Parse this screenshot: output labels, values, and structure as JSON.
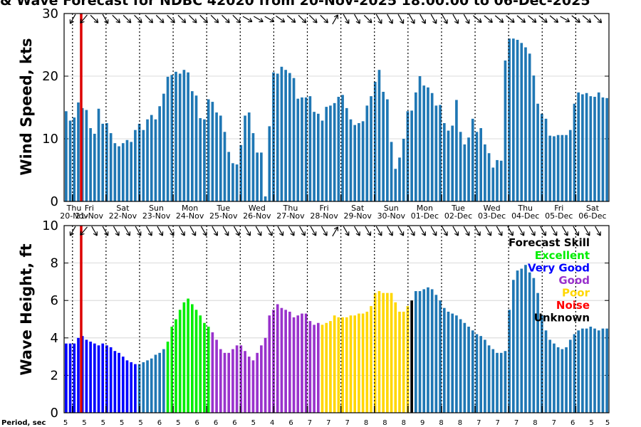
{
  "chart_data": {
    "title": "& Wave Forecast for NDBC 42020 from 20-Nov-2025 18:00:00 to 06-Dec-2025",
    "panels": [
      {
        "name": "wind",
        "type": "bar",
        "ylabel": "Wind Speed, kts",
        "ylim": [
          0,
          30
        ],
        "yticks": [
          "0",
          "10",
          "20",
          "30"
        ],
        "bar_color": "#1f77b4",
        "values": [
          14.4,
          12.9,
          13.4,
          15.8,
          14.9,
          14.6,
          11.7,
          10.8,
          14.8,
          12.4,
          12.5,
          10.9,
          9.3,
          8.8,
          9.3,
          9.8,
          9.5,
          11.4,
          12.4,
          11.4,
          13.1,
          13.8,
          13.1,
          15.2,
          17.2,
          19.9,
          20.2,
          20.7,
          20.4,
          21.0,
          20.6,
          17.6,
          16.9,
          13.3,
          13.1,
          16.3,
          15.9,
          14.2,
          13.7,
          11.1,
          7.9,
          6.1,
          5.9,
          9.0,
          13.7,
          14.2,
          10.9,
          7.8,
          7.8,
          0.8,
          12.0,
          20.6,
          20.4,
          21.5,
          21.0,
          20.5,
          19.7,
          16.4,
          16.6,
          16.6,
          16.8,
          14.3,
          14.0,
          12.9,
          15.1,
          15.3,
          15.7,
          16.7,
          17.0,
          14.9,
          13.1,
          12.2,
          12.5,
          12.8,
          15.3,
          16.8,
          19.1,
          21.0,
          17.5,
          16.3,
          9.5,
          5.2,
          7.0,
          10.0,
          14.4,
          14.5,
          17.4,
          20.0,
          18.5,
          18.2,
          17.3,
          15.3,
          15.4,
          12.5,
          11.3,
          12.1,
          16.2,
          11.1,
          9.1,
          10.2,
          13.2,
          11.1,
          11.7,
          9.1,
          7.7,
          5.4,
          6.6,
          6.5,
          22.5,
          26.0,
          26.0,
          25.8,
          25.3,
          24.6,
          23.6,
          20.1,
          15.6,
          14.0,
          13.2,
          10.5,
          10.4,
          10.6,
          10.6,
          10.6,
          11.4,
          15.6,
          17.4,
          17.1,
          17.3,
          16.8,
          16.7,
          17.4,
          16.6,
          16.5
        ]
      },
      {
        "name": "wave",
        "type": "bar",
        "ylabel": "Wave Height, ft",
        "ylim": [
          0,
          10
        ],
        "yticks": [
          "0",
          "2",
          "4",
          "6",
          "8",
          "10"
        ],
        "values": [
          3.7,
          3.7,
          3.7,
          4.0,
          4.1,
          3.9,
          3.8,
          3.7,
          3.6,
          3.7,
          3.6,
          3.5,
          3.3,
          3.2,
          3.0,
          2.8,
          2.7,
          2.6,
          2.6,
          2.7,
          2.8,
          2.9,
          3.1,
          3.2,
          3.4,
          3.8,
          4.6,
          5.0,
          5.5,
          5.9,
          6.1,
          5.8,
          5.5,
          5.2,
          4.8,
          4.6,
          4.3,
          3.9,
          3.4,
          3.2,
          3.2,
          3.4,
          3.6,
          3.6,
          3.3,
          3.0,
          2.8,
          3.2,
          3.6,
          4.0,
          5.2,
          5.5,
          5.8,
          5.6,
          5.5,
          5.4,
          5.1,
          5.2,
          5.3,
          5.3,
          4.9,
          4.7,
          4.8,
          4.7,
          4.8,
          4.9,
          5.2,
          5.1,
          5.1,
          5.1,
          5.2,
          5.2,
          5.3,
          5.3,
          5.4,
          5.7,
          6.4,
          6.5,
          6.4,
          6.4,
          6.4,
          5.9,
          5.4,
          5.4,
          5.7,
          6.0,
          6.5,
          6.5,
          6.6,
          6.7,
          6.6,
          6.3,
          6.0,
          5.6,
          5.4,
          5.3,
          5.2,
          5.0,
          4.8,
          4.6,
          4.4,
          4.2,
          4.1,
          3.9,
          3.6,
          3.4,
          3.2,
          3.2,
          3.3,
          5.5,
          7.1,
          7.6,
          7.7,
          7.9,
          7.5,
          7.2,
          6.4,
          5.2,
          4.4,
          3.9,
          3.7,
          3.5,
          3.4,
          3.5,
          3.9,
          4.2,
          4.4,
          4.5,
          4.5,
          4.6,
          4.5,
          4.4,
          4.5,
          4.5
        ],
        "skill_colors": {
          "Excellent": "#00ee00",
          "Very Good": "#0000ff",
          "Good": "#9932cc",
          "Poor": "#ffd700",
          "Noise": "#ff0000",
          "Unknown": "#000000",
          "Default": "#1f77b4"
        },
        "skill_segments": [
          {
            "from": 0,
            "to": 17,
            "skill": "Very Good"
          },
          {
            "from": 18,
            "to": 24,
            "skill": "Default"
          },
          {
            "from": 25,
            "to": 35,
            "skill": "Excellent"
          },
          {
            "from": 36,
            "to": 40,
            "skill": "Good"
          },
          {
            "from": 41,
            "to": 54,
            "skill": "Good"
          },
          {
            "from": 55,
            "to": 62,
            "skill": "Good"
          },
          {
            "from": 63,
            "to": 75,
            "skill": "Poor"
          },
          {
            "from": 76,
            "to": 84,
            "skill": "Poor"
          },
          {
            "from": 85,
            "to": 85,
            "skill": "Unknown"
          },
          {
            "from": 86,
            "to": 136,
            "skill": "Default"
          }
        ]
      }
    ],
    "day_labels": [
      {
        "weekday": "Thu",
        "date": "20-Nov"
      },
      {
        "weekday": "Fri",
        "date": "21-Nov"
      },
      {
        "weekday": "Sat",
        "date": "22-Nov"
      },
      {
        "weekday": "Sun",
        "date": "23-Nov"
      },
      {
        "weekday": "Mon",
        "date": "24-Nov"
      },
      {
        "weekday": "Tue",
        "date": "25-Nov"
      },
      {
        "weekday": "Wed",
        "date": "26-Nov"
      },
      {
        "weekday": "Thu",
        "date": "27-Nov"
      },
      {
        "weekday": "Fri",
        "date": "28-Nov"
      },
      {
        "weekday": "Sat",
        "date": "29-Nov"
      },
      {
        "weekday": "Sun",
        "date": "30-Nov"
      },
      {
        "weekday": "Mon",
        "date": "01-Dec"
      },
      {
        "weekday": "Tue",
        "date": "02-Dec"
      },
      {
        "weekday": "Wed",
        "date": "03-Dec"
      },
      {
        "weekday": "Thu",
        "date": "04-Dec"
      },
      {
        "weekday": "Fri",
        "date": "05-Dec"
      },
      {
        "weekday": "Sat",
        "date": "06-Dec"
      }
    ],
    "now_marker_color": "#dd0000",
    "period_label": "Period, sec",
    "period_values": [
      "5",
      "5",
      "5",
      "5",
      "5",
      "6",
      "5",
      "6",
      "6",
      "6",
      "5",
      "4",
      "6",
      "7",
      "7",
      "7",
      "8",
      "8",
      "8",
      "9",
      "8",
      "8",
      "7",
      "7",
      "7",
      "8",
      "7",
      "6",
      "5",
      "5"
    ],
    "legend": {
      "title": "Forecast Skill",
      "items": [
        {
          "label": "Excellent",
          "color": "#00ee00"
        },
        {
          "label": "Very Good",
          "color": "#0000ff"
        },
        {
          "label": "Good",
          "color": "#9932cc"
        },
        {
          "label": "Poor",
          "color": "#ffd700"
        },
        {
          "label": "Noise",
          "color": "#ff0000"
        },
        {
          "label": "Unknown",
          "color": "#000000"
        }
      ]
    },
    "wind_directions_deg": [
      120,
      130,
      45,
      60,
      45,
      45,
      45,
      45,
      45,
      45,
      45,
      45,
      45,
      45,
      45,
      45,
      30,
      30,
      30,
      35,
      40,
      45,
      45,
      45,
      300,
      60,
      60,
      45,
      60,
      60,
      60,
      60,
      60,
      60,
      60,
      60,
      60,
      40,
      40,
      40,
      40,
      40,
      40,
      40,
      40,
      30,
      40,
      40,
      45
    ],
    "wave_directions_deg": [
      120,
      130,
      60,
      60,
      60,
      60,
      60,
      60,
      60,
      60,
      60,
      60,
      60,
      60,
      60,
      60,
      60,
      60,
      60,
      60,
      60,
      60,
      60,
      60,
      300,
      60,
      60,
      60,
      60,
      60,
      60,
      60,
      60,
      60,
      60,
      60,
      60,
      60,
      60,
      60,
      60,
      60,
      60,
      60,
      60,
      60,
      60,
      60,
      60
    ]
  }
}
